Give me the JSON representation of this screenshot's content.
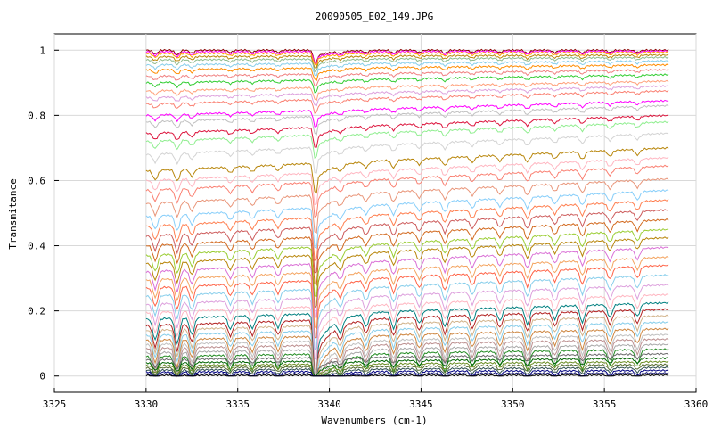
{
  "chart_data": {
    "type": "line",
    "title": "20090505_E02_149.JPG",
    "xlabel": "Wavenumbers (cm-1)",
    "ylabel": "Transmitance",
    "xlim": [
      3325,
      3360
    ],
    "ylim": [
      -0.05,
      1.05
    ],
    "x_ticks": [
      3325,
      3330,
      3335,
      3340,
      3345,
      3350,
      3355,
      3360
    ],
    "x_tick_labels": [
      "3325",
      "3330",
      "3335",
      "3340",
      "3345",
      "3350",
      "3355",
      "3360"
    ],
    "y_ticks": [
      0,
      0.2,
      0.4,
      0.6,
      0.8,
      1
    ],
    "y_tick_labels": [
      "0",
      "0.2",
      "0.4",
      "0.6",
      "0.8",
      "1"
    ],
    "grid": true,
    "legend": "none",
    "x_range": [
      3330,
      3358.5
    ],
    "sample_step": 0.5,
    "absorption_lines": [
      {
        "x": 3330.5,
        "depth": 0.05
      },
      {
        "x": 3331.7,
        "depth": 0.06
      },
      {
        "x": 3332.5,
        "depth": 0.04
      },
      {
        "x": 3334.6,
        "depth": 0.03
      },
      {
        "x": 3335.8,
        "depth": 0.03
      },
      {
        "x": 3337.2,
        "depth": 0.03
      },
      {
        "x": 3339.2,
        "depth": 0.15
      },
      {
        "x": 3340.6,
        "depth": 0.03
      },
      {
        "x": 3342.0,
        "depth": 0.03
      },
      {
        "x": 3343.5,
        "depth": 0.04
      },
      {
        "x": 3344.9,
        "depth": 0.03
      },
      {
        "x": 3346.3,
        "depth": 0.04
      },
      {
        "x": 3347.8,
        "depth": 0.03
      },
      {
        "x": 3349.3,
        "depth": 0.03
      },
      {
        "x": 3350.8,
        "depth": 0.04
      },
      {
        "x": 3352.3,
        "depth": 0.03
      },
      {
        "x": 3353.8,
        "depth": 0.04
      },
      {
        "x": 3355.3,
        "depth": 0.03
      },
      {
        "x": 3356.8,
        "depth": 0.03
      }
    ],
    "series": [
      {
        "base": 1.0,
        "slope": 0.0,
        "color": "#8b0000"
      },
      {
        "base": 0.995,
        "slope": 0.002,
        "color": "#ff00ff"
      },
      {
        "base": 0.99,
        "slope": 0.003,
        "color": "#ffa500"
      },
      {
        "base": 0.98,
        "slope": 0.005,
        "color": "#b8860b"
      },
      {
        "base": 0.97,
        "slope": 0.008,
        "color": "#8fbc8f"
      },
      {
        "base": 0.955,
        "slope": 0.012,
        "color": "#87ceeb"
      },
      {
        "base": 0.94,
        "slope": 0.015,
        "color": "#ff8c00"
      },
      {
        "base": 0.92,
        "slope": 0.02,
        "color": "#f08080"
      },
      {
        "base": 0.9,
        "slope": 0.025,
        "color": "#32cd32"
      },
      {
        "base": 0.875,
        "slope": 0.03,
        "color": "#ffa07a"
      },
      {
        "base": 0.855,
        "slope": 0.035,
        "color": "#dda0dd"
      },
      {
        "base": 0.835,
        "slope": 0.04,
        "color": "#fa8072"
      },
      {
        "base": 0.8,
        "slope": 0.045,
        "color": "#ff00ff"
      },
      {
        "base": 0.78,
        "slope": 0.05,
        "color": "#c0c0c0"
      },
      {
        "base": 0.745,
        "slope": 0.055,
        "color": "#dc143c"
      },
      {
        "base": 0.72,
        "slope": 0.06,
        "color": "#90ee90"
      },
      {
        "base": 0.68,
        "slope": 0.065,
        "color": "#d3d3d3"
      },
      {
        "base": 0.63,
        "slope": 0.07,
        "color": "#b8860b"
      },
      {
        "base": 0.6,
        "slope": 0.07,
        "color": "#ffb6c1"
      },
      {
        "base": 0.57,
        "slope": 0.075,
        "color": "#fa8072"
      },
      {
        "base": 0.53,
        "slope": 0.075,
        "color": "#e9967a"
      },
      {
        "base": 0.49,
        "slope": 0.08,
        "color": "#87cefa"
      },
      {
        "base": 0.46,
        "slope": 0.08,
        "color": "#ff7f50"
      },
      {
        "base": 0.43,
        "slope": 0.08,
        "color": "#cd5c5c"
      },
      {
        "base": 0.4,
        "slope": 0.08,
        "color": "#d2691e"
      },
      {
        "base": 0.37,
        "slope": 0.08,
        "color": "#9acd32"
      },
      {
        "base": 0.345,
        "slope": 0.08,
        "color": "#b8860b"
      },
      {
        "base": 0.32,
        "slope": 0.075,
        "color": "#da70d6"
      },
      {
        "base": 0.295,
        "slope": 0.07,
        "color": "#f4a460"
      },
      {
        "base": 0.27,
        "slope": 0.07,
        "color": "#ff6347"
      },
      {
        "base": 0.245,
        "slope": 0.065,
        "color": "#87ceeb"
      },
      {
        "base": 0.22,
        "slope": 0.06,
        "color": "#dda0dd"
      },
      {
        "base": 0.195,
        "slope": 0.055,
        "color": "#ffb6c1"
      },
      {
        "base": 0.175,
        "slope": 0.05,
        "color": "#008080"
      },
      {
        "base": 0.155,
        "slope": 0.05,
        "color": "#b22222"
      },
      {
        "base": 0.14,
        "slope": 0.045,
        "color": "#d2b48c"
      },
      {
        "base": 0.125,
        "slope": 0.04,
        "color": "#87ceeb"
      },
      {
        "base": 0.11,
        "slope": 0.035,
        "color": "#cd853f"
      },
      {
        "base": 0.097,
        "slope": 0.03,
        "color": "#c0c0c0"
      },
      {
        "base": 0.085,
        "slope": 0.028,
        "color": "#bc8f8f"
      },
      {
        "base": 0.072,
        "slope": 0.025,
        "color": "#a9a9a9"
      },
      {
        "base": 0.06,
        "slope": 0.022,
        "color": "#228b22"
      },
      {
        "base": 0.05,
        "slope": 0.018,
        "color": "#696969"
      },
      {
        "base": 0.04,
        "slope": 0.015,
        "color": "#006400"
      },
      {
        "base": 0.032,
        "slope": 0.012,
        "color": "#6b8e23"
      },
      {
        "base": 0.025,
        "slope": 0.01,
        "color": "#556b2f"
      },
      {
        "base": 0.018,
        "slope": 0.008,
        "color": "#2f4f4f"
      },
      {
        "base": 0.012,
        "slope": 0.005,
        "color": "#000080"
      },
      {
        "base": 0.006,
        "slope": 0.003,
        "color": "#191970"
      },
      {
        "base": 0.002,
        "slope": 0.001,
        "color": "#000000"
      }
    ]
  }
}
